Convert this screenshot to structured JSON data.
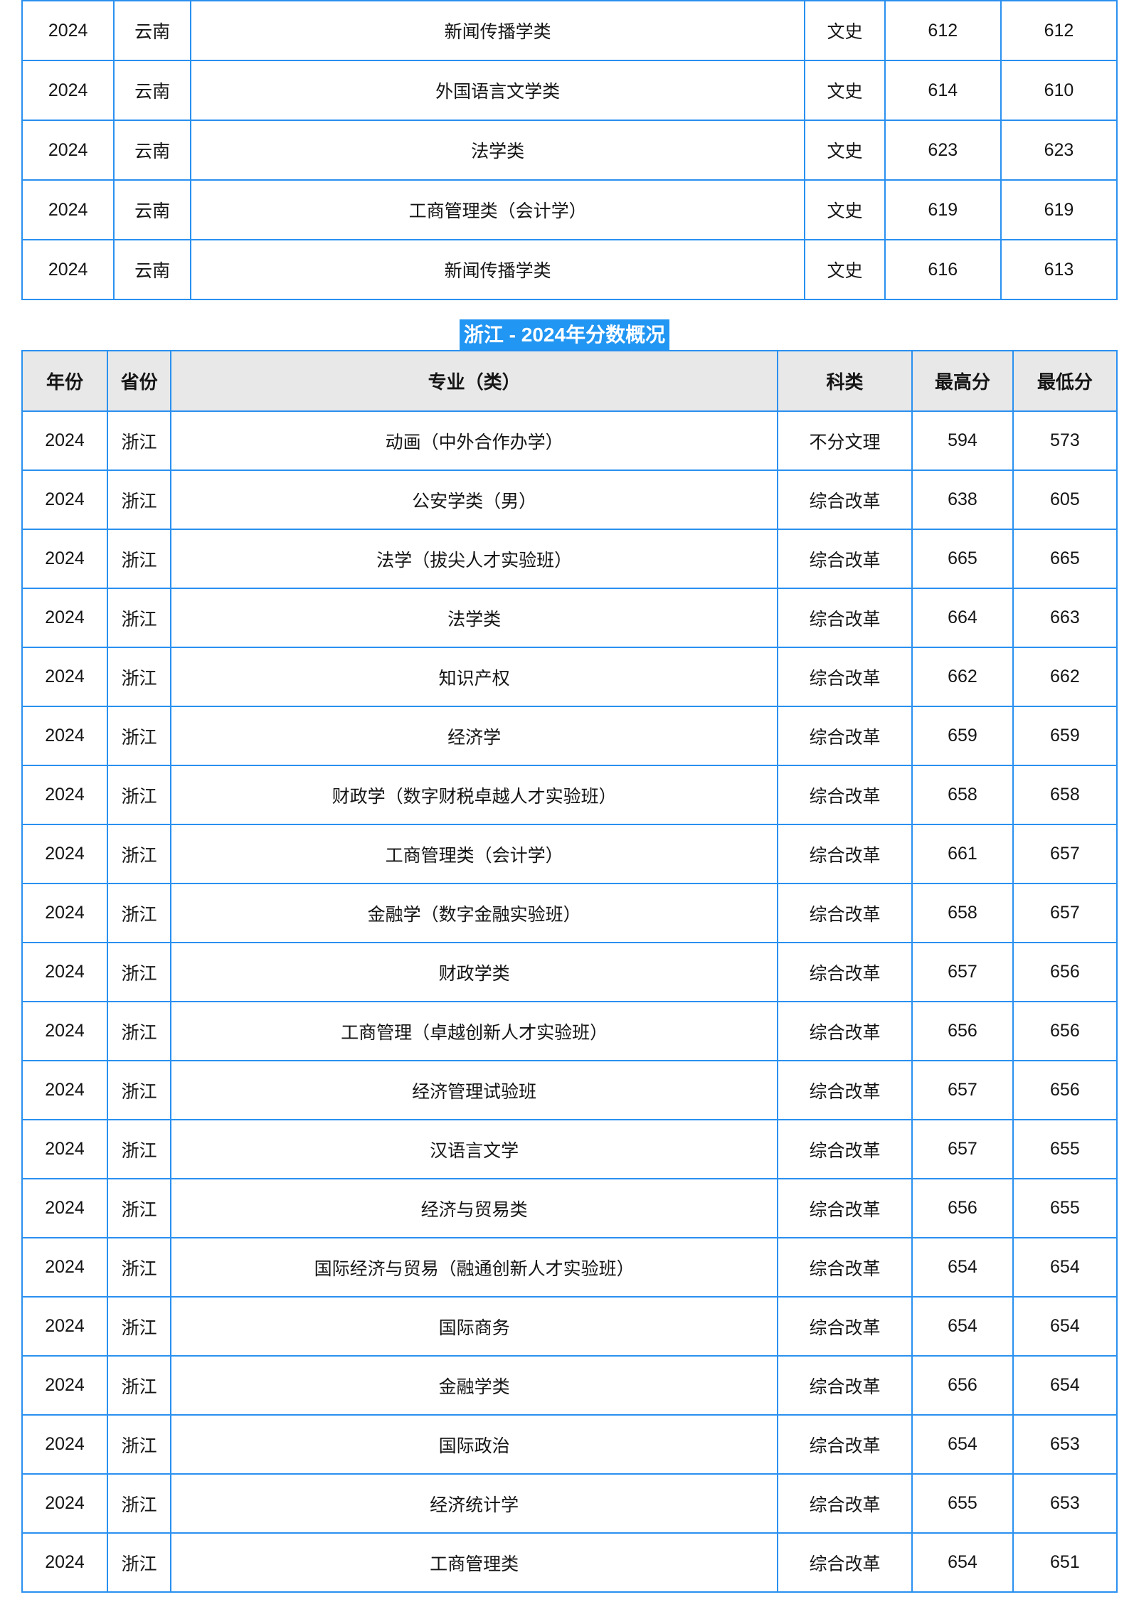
{
  "colors": {
    "table_border": "#2a90f0",
    "section_heading_background": "#2196f3",
    "section_heading_text": "#ffffff",
    "header_row_background": "#e8e8e8",
    "body_text": "#151515"
  },
  "section_heading": {
    "text": "浙江 - 2024年分数概况"
  },
  "yunnan_table": {
    "rows": [
      {
        "year": "2024",
        "province": "云南",
        "major": "新闻传播学类",
        "category": "文史",
        "max": "612",
        "min": "612"
      },
      {
        "year": "2024",
        "province": "云南",
        "major": "外国语言文学类",
        "category": "文史",
        "max": "614",
        "min": "610"
      },
      {
        "year": "2024",
        "province": "云南",
        "major": "法学类",
        "category": "文史",
        "max": "623",
        "min": "623"
      },
      {
        "year": "2024",
        "province": "云南",
        "major": "工商管理类（会计学）",
        "category": "文史",
        "max": "619",
        "min": "619"
      },
      {
        "year": "2024",
        "province": "云南",
        "major": "新闻传播学类",
        "category": "文史",
        "max": "616",
        "min": "613"
      }
    ]
  },
  "zhejiang_table": {
    "headers": {
      "year": "年份",
      "province": "省份",
      "major": "专业（类）",
      "category": "科类",
      "max": "最高分",
      "min": "最低分"
    },
    "rows": [
      {
        "year": "2024",
        "province": "浙江",
        "major": "动画（中外合作办学）",
        "category": "不分文理",
        "max": "594",
        "min": "573"
      },
      {
        "year": "2024",
        "province": "浙江",
        "major": "公安学类（男）",
        "category": "综合改革",
        "max": "638",
        "min": "605"
      },
      {
        "year": "2024",
        "province": "浙江",
        "major": "法学（拔尖人才实验班）",
        "category": "综合改革",
        "max": "665",
        "min": "665"
      },
      {
        "year": "2024",
        "province": "浙江",
        "major": "法学类",
        "category": "综合改革",
        "max": "664",
        "min": "663"
      },
      {
        "year": "2024",
        "province": "浙江",
        "major": "知识产权",
        "category": "综合改革",
        "max": "662",
        "min": "662"
      },
      {
        "year": "2024",
        "province": "浙江",
        "major": "经济学",
        "category": "综合改革",
        "max": "659",
        "min": "659"
      },
      {
        "year": "2024",
        "province": "浙江",
        "major": "财政学（数字财税卓越人才实验班）",
        "category": "综合改革",
        "max": "658",
        "min": "658"
      },
      {
        "year": "2024",
        "province": "浙江",
        "major": "工商管理类（会计学）",
        "category": "综合改革",
        "max": "661",
        "min": "657"
      },
      {
        "year": "2024",
        "province": "浙江",
        "major": "金融学（数字金融实验班）",
        "category": "综合改革",
        "max": "658",
        "min": "657"
      },
      {
        "year": "2024",
        "province": "浙江",
        "major": "财政学类",
        "category": "综合改革",
        "max": "657",
        "min": "656"
      },
      {
        "year": "2024",
        "province": "浙江",
        "major": "工商管理（卓越创新人才实验班）",
        "category": "综合改革",
        "max": "656",
        "min": "656"
      },
      {
        "year": "2024",
        "province": "浙江",
        "major": "经济管理试验班",
        "category": "综合改革",
        "max": "657",
        "min": "656"
      },
      {
        "year": "2024",
        "province": "浙江",
        "major": "汉语言文学",
        "category": "综合改革",
        "max": "657",
        "min": "655"
      },
      {
        "year": "2024",
        "province": "浙江",
        "major": "经济与贸易类",
        "category": "综合改革",
        "max": "656",
        "min": "655"
      },
      {
        "year": "2024",
        "province": "浙江",
        "major": "国际经济与贸易（融通创新人才实验班）",
        "category": "综合改革",
        "max": "654",
        "min": "654"
      },
      {
        "year": "2024",
        "province": "浙江",
        "major": "国际商务",
        "category": "综合改革",
        "max": "654",
        "min": "654"
      },
      {
        "year": "2024",
        "province": "浙江",
        "major": "金融学类",
        "category": "综合改革",
        "max": "656",
        "min": "654"
      },
      {
        "year": "2024",
        "province": "浙江",
        "major": "国际政治",
        "category": "综合改革",
        "max": "654",
        "min": "653"
      },
      {
        "year": "2024",
        "province": "浙江",
        "major": "经济统计学",
        "category": "综合改革",
        "max": "655",
        "min": "653"
      },
      {
        "year": "2024",
        "province": "浙江",
        "major": "工商管理类",
        "category": "综合改革",
        "max": "654",
        "min": "651"
      }
    ]
  }
}
